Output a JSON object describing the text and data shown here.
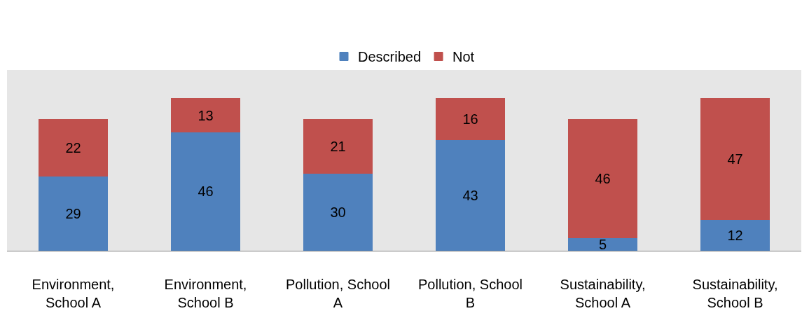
{
  "chart_data": {
    "type": "bar",
    "stacked": true,
    "categories": [
      "Environment, School A",
      "Environment, School B",
      "Pollution, School A",
      "Pollution, School B",
      "Sustainability, School A",
      "Sustainability, School B"
    ],
    "series": [
      {
        "name": "Described",
        "color": "#4f81bd",
        "values": [
          29,
          46,
          30,
          43,
          5,
          12
        ]
      },
      {
        "name": "Not",
        "color": "#c0504d",
        "values": [
          22,
          13,
          21,
          16,
          46,
          47
        ]
      }
    ],
    "ylim": [
      0,
      70
    ],
    "data_labels": true,
    "legend": "top",
    "grid": false,
    "tick_labels": "x"
  }
}
